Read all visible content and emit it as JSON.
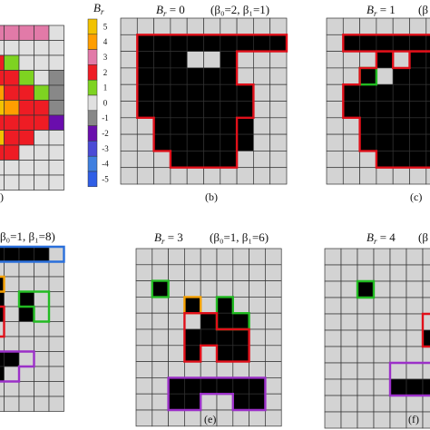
{
  "colorbar": {
    "title_main": "B",
    "title_sub": "r",
    "ticks": [
      "5",
      "4",
      "3",
      "2",
      "1",
      "0",
      "-1",
      "-2",
      "-3",
      "-4",
      "-5"
    ],
    "colors": [
      "#f2c200",
      "#ff9e00",
      "#e27aa8",
      "#ee1c24",
      "#7ed321",
      "#e0e0e0",
      "#888888",
      "#6a0dad",
      "#4b4bd6",
      "#3f7fe0",
      "#2f5ee6"
    ]
  },
  "panels": [
    {
      "id": "a",
      "label": "(a)",
      "title": ""
    },
    {
      "id": "b",
      "label": "(b)",
      "title_main": "B",
      "title_sub": "r",
      "title_eq": " = 0",
      "betas": "(β₀=2, β₁=1)"
    },
    {
      "id": "c",
      "label": "(c)",
      "title_main": "B",
      "title_sub": "r",
      "title_eq": " = 1",
      "betas": "(β"
    },
    {
      "id": "d",
      "label": "",
      "betas": "β₀=1, β₁=8)"
    },
    {
      "id": "e",
      "label": "(e)",
      "title_main": "B",
      "title_sub": "r",
      "title_eq": " = 3",
      "betas": "(β₀=1, β₁=6)"
    },
    {
      "id": "f",
      "label": "(f)",
      "title_main": "B",
      "title_sub": "r",
      "title_eq": " = 4",
      "betas": "(β"
    }
  ],
  "colors": {
    "grid_fill": "#d3d3d3",
    "grid_line": "#333333",
    "black": "#000000",
    "red": "#e0101a",
    "green": "#22bb22",
    "orange": "#f5a000",
    "blue": "#2a6fdb",
    "purple": "#9b30c8"
  }
}
